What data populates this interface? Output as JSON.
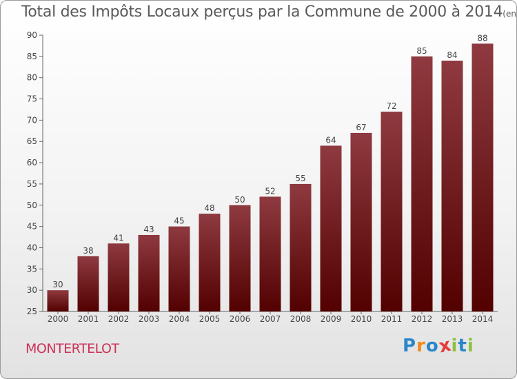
{
  "title": "Total des Impôts Locaux perçus par la Commune de 2000 à 2014",
  "title_unit": "(en milliers d'€)",
  "commune": "MONTERTELOT",
  "brand": {
    "letters": [
      "P",
      "r",
      "o",
      "x",
      "i",
      "t",
      "i"
    ],
    "colors": [
      "#2a86c9",
      "#f08a1c",
      "#2a86c9",
      "#e53b3b",
      "#8bc23f",
      "#2a86c9",
      "#8bc23f"
    ]
  },
  "colors": {
    "bar_top": "#8e3a40",
    "bar_bottom": "#520000",
    "axis": "#666666",
    "grid": "#dddddd"
  },
  "chart_data": {
    "type": "bar",
    "title": "Total des Impôts Locaux perçus par la Commune de 2000 à 2014",
    "xlabel": "",
    "ylabel": "",
    "categories": [
      "2000",
      "2001",
      "2002",
      "2003",
      "2004",
      "2005",
      "2006",
      "2007",
      "2008",
      "2009",
      "2010",
      "2011",
      "2012",
      "2013",
      "2014"
    ],
    "values": [
      30,
      38,
      41,
      43,
      45,
      48,
      50,
      52,
      55,
      64,
      67,
      72,
      85,
      84,
      88
    ],
    "ylim": [
      25,
      90
    ],
    "yticks": [
      25,
      30,
      35,
      40,
      45,
      50,
      55,
      60,
      65,
      70,
      75,
      80,
      85,
      90
    ],
    "grid": false
  }
}
